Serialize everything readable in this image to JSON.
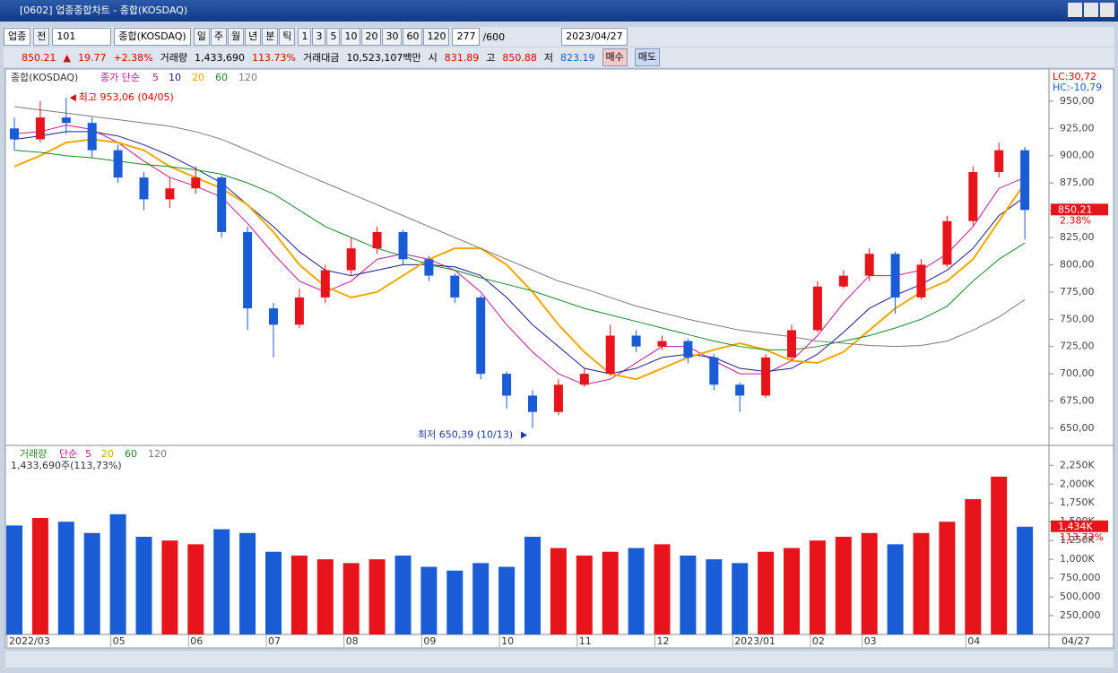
{
  "window": {
    "title": "[0602] 업종종합차트 - 종합(KOSDAQ)"
  },
  "toolbar": {
    "market": "업종",
    "all": "전",
    "code": "101",
    "name": "종합(KOSDAQ)",
    "periods": [
      "일",
      "주",
      "월",
      "년",
      "분",
      "틱"
    ],
    "intervals": [
      "1",
      "3",
      "5",
      "10",
      "20",
      "30",
      "60",
      "120"
    ],
    "count": "277",
    "max": "/600",
    "date": "2023/04/27"
  },
  "quote": {
    "price": "850.21",
    "arrow": "▲",
    "change": "19.77",
    "rate": "+2.38%",
    "volume_label": "거래량",
    "volume": "1,433,690",
    "volume_rate": "113.73%",
    "amount_label": "거래대금",
    "amount": "10,523,107백만",
    "open_label": "시",
    "open": "831.89",
    "high_label": "고",
    "high": "850.88",
    "low_label": "저",
    "low": "823.19",
    "buy": "매수",
    "sell": "매도"
  },
  "x_end_label": "04/27",
  "chart_data": [
    {
      "type": "candlestick",
      "title": "종합(KOSDAQ)",
      "legend_prefix": "종가 단순",
      "categories": [
        "2022/03",
        null,
        null,
        null,
        "05",
        null,
        null,
        "06",
        null,
        null,
        "07",
        null,
        null,
        "08",
        null,
        null,
        "09",
        null,
        null,
        "10",
        null,
        null,
        "11",
        null,
        null,
        "12",
        null,
        null,
        "2023/01",
        null,
        null,
        "02",
        null,
        "03",
        null,
        null,
        null,
        "04",
        null,
        null
      ],
      "open": [
        925,
        915,
        935,
        930,
        905,
        880,
        860,
        870,
        880,
        830,
        760,
        745,
        770,
        795,
        815,
        830,
        805,
        790,
        770,
        700,
        680,
        665,
        690,
        700,
        735,
        725,
        730,
        715,
        690,
        680,
        715,
        740,
        780,
        790,
        810,
        770,
        800,
        840,
        885,
        905
      ],
      "high": [
        935,
        950,
        953.06,
        935,
        910,
        885,
        880,
        890,
        882,
        835,
        765,
        778,
        800,
        825,
        835,
        832,
        808,
        792,
        772,
        702,
        685,
        695,
        705,
        745,
        740,
        735,
        732,
        718,
        692,
        718,
        745,
        785,
        795,
        815,
        812,
        805,
        845,
        890,
        912,
        908
      ],
      "low": [
        905,
        912,
        920,
        898,
        875,
        850,
        852,
        865,
        825,
        740,
        715,
        742,
        765,
        790,
        810,
        800,
        785,
        765,
        695,
        668,
        650.39,
        662,
        688,
        698,
        720,
        722,
        710,
        685,
        665,
        678,
        712,
        738,
        778,
        785,
        755,
        768,
        798,
        836,
        880,
        823.19
      ],
      "close": [
        915,
        935,
        930,
        905,
        880,
        860,
        870,
        880,
        830,
        760,
        745,
        770,
        795,
        815,
        830,
        805,
        790,
        770,
        700,
        680,
        665,
        690,
        700,
        735,
        725,
        730,
        715,
        690,
        680,
        715,
        740,
        780,
        790,
        810,
        770,
        800,
        840,
        885,
        905,
        850.21
      ],
      "up_color": "#e8141c",
      "down_color": "#1a5bd6",
      "series": [
        {
          "name": "5",
          "color": "#c0189c",
          "values": [
            920,
            922,
            928,
            924,
            912,
            895,
            880,
            872,
            862,
            838,
            810,
            785,
            775,
            785,
            805,
            810,
            805,
            795,
            775,
            745,
            720,
            700,
            690,
            695,
            710,
            725,
            725,
            712,
            700,
            700,
            712,
            735,
            765,
            790,
            790,
            795,
            810,
            835,
            870,
            880
          ]
        },
        {
          "name": "10",
          "color": "#1c1c8c",
          "values": [
            915,
            918,
            922,
            922,
            918,
            910,
            900,
            888,
            875,
            855,
            835,
            812,
            795,
            790,
            795,
            800,
            800,
            798,
            790,
            770,
            745,
            725,
            705,
            700,
            705,
            715,
            718,
            715,
            705,
            702,
            705,
            718,
            738,
            760,
            772,
            782,
            795,
            815,
            845,
            862
          ]
        },
        {
          "name": "20",
          "color": "#f0a800",
          "values": [
            890,
            900,
            912,
            915,
            912,
            905,
            890,
            880,
            870,
            855,
            830,
            800,
            780,
            770,
            775,
            790,
            805,
            815,
            815,
            800,
            775,
            745,
            720,
            700,
            695,
            705,
            715,
            722,
            728,
            722,
            712,
            710,
            720,
            740,
            760,
            775,
            785,
            805,
            840,
            875
          ]
        },
        {
          "name": "60",
          "color": "#1a8a2a",
          "values": [
            905,
            903,
            900,
            898,
            895,
            892,
            890,
            887,
            883,
            875,
            865,
            850,
            835,
            825,
            815,
            808,
            800,
            795,
            788,
            782,
            776,
            768,
            760,
            754,
            748,
            742,
            736,
            730,
            725,
            722,
            722,
            725,
            730,
            735,
            742,
            750,
            762,
            785,
            805,
            820
          ]
        },
        {
          "name": "120",
          "color": "#7a7a7a",
          "values": [
            945,
            942,
            939,
            936,
            933,
            930,
            927,
            922,
            915,
            905,
            895,
            885,
            875,
            865,
            855,
            845,
            835,
            825,
            815,
            805,
            795,
            785,
            778,
            770,
            762,
            756,
            750,
            745,
            740,
            737,
            734,
            730,
            728,
            726,
            725,
            726,
            730,
            740,
            752,
            768
          ]
        }
      ],
      "ylim": [
        636,
        977
      ],
      "yticks": [
        {
          "value": 650,
          "label": "650,00"
        },
        {
          "value": 675,
          "label": "675,00"
        },
        {
          "value": 700,
          "label": "700,00"
        },
        {
          "value": 725,
          "label": "725,00"
        },
        {
          "value": 750,
          "label": "750,00"
        },
        {
          "value": 775,
          "label": "775,00"
        },
        {
          "value": 800,
          "label": "800,00"
        },
        {
          "value": 825,
          "label": "825,00"
        },
        {
          "value": 850,
          "label": "850,00"
        },
        {
          "value": 875,
          "label": "875,00"
        },
        {
          "value": 900,
          "label": "900,00"
        },
        {
          "value": 925,
          "label": "925,00"
        },
        {
          "value": 950,
          "label": "950,00"
        }
      ],
      "last_value": 850.21,
      "last_rate": "2.38%",
      "lc": "LC:30,72",
      "hc": "HC:-10,79",
      "max_annotation": "최고 953,06 (04/05)",
      "min_annotation": "최저 650,39 (10/13)"
    },
    {
      "type": "bar",
      "title": "거래량",
      "legend_prefix": "단순",
      "legend": [
        {
          "name": "5",
          "color": "#c0189c"
        },
        {
          "name": "20",
          "color": "#d8a800"
        },
        {
          "name": "60",
          "color": "#1a8a2a"
        },
        {
          "name": "120",
          "color": "#7a7a7a"
        }
      ],
      "caption": "1,433,690주(113,73%)",
      "values": [
        1450000,
        1550000,
        1500000,
        1350000,
        1600000,
        1300000,
        1250000,
        1200000,
        1400000,
        1350000,
        1100000,
        1050000,
        1000000,
        950000,
        1000000,
        1050000,
        900000,
        850000,
        950000,
        900000,
        1300000,
        1150000,
        1050000,
        1100000,
        1150000,
        1200000,
        1050000,
        1000000,
        950000,
        1100000,
        1150000,
        1250000,
        1300000,
        1350000,
        1200000,
        1350000,
        1500000,
        1800000,
        2100000,
        1433690
      ],
      "ylim": [
        0,
        2480000
      ],
      "yticks": [
        {
          "value": 250000,
          "label": "250,000"
        },
        {
          "value": 500000,
          "label": "500,000"
        },
        {
          "value": 750000,
          "label": "750,000"
        },
        {
          "value": 1000000,
          "label": "1,000K"
        },
        {
          "value": 1250000,
          "label": "1,250K"
        },
        {
          "value": 1500000,
          "label": "1,500K"
        },
        {
          "value": 1750000,
          "label": "1,750K"
        },
        {
          "value": 2000000,
          "label": "2,000K"
        },
        {
          "value": 2250000,
          "label": "2,250K"
        }
      ],
      "last_label": "1,434K",
      "last_rate": "113,73%"
    }
  ]
}
